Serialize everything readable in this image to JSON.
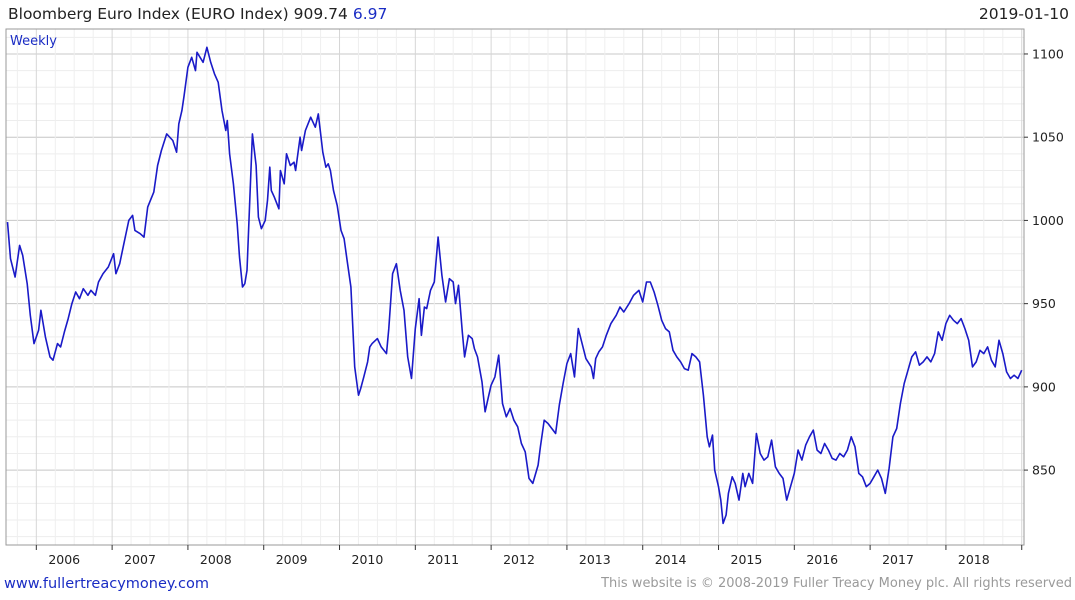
{
  "header": {
    "title": "Bloomberg Euro Index (EURO Index)",
    "last_value": "909.74",
    "change": "6.97",
    "date": "2019-01-10"
  },
  "footer": {
    "website": "www.fullertreacymoney.com",
    "copyright": "This website is © 2008-2019 Fuller Treacy Money plc. All rights reserved"
  },
  "colors": {
    "series": "#1a1ac8",
    "grid": "#dcdcdc",
    "text": "#222222",
    "accent": "#1a2cc4"
  },
  "chart_data": {
    "type": "line",
    "frequency_label": "Weekly",
    "xlabel": "",
    "ylabel": "",
    "xlim": [
      2005.6,
      2019.03
    ],
    "ylim": [
      805,
      1115
    ],
    "y_axis_side": "right",
    "grid": true,
    "x_ticks": [
      {
        "value": 2006,
        "label": "2006"
      },
      {
        "value": 2007,
        "label": "2007"
      },
      {
        "value": 2008,
        "label": "2008"
      },
      {
        "value": 2009,
        "label": "2009"
      },
      {
        "value": 2010,
        "label": "2010"
      },
      {
        "value": 2011,
        "label": "2011"
      },
      {
        "value": 2012,
        "label": "2012"
      },
      {
        "value": 2013,
        "label": "2013"
      },
      {
        "value": 2014,
        "label": "2014"
      },
      {
        "value": 2015,
        "label": "2015"
      },
      {
        "value": 2016,
        "label": "2016"
      },
      {
        "value": 2017,
        "label": "2017"
      },
      {
        "value": 2018,
        "label": "2018"
      }
    ],
    "y_ticks": [
      {
        "value": 850,
        "label": "850"
      },
      {
        "value": 900,
        "label": "900"
      },
      {
        "value": 950,
        "label": "950"
      },
      {
        "value": 1000,
        "label": "1000"
      },
      {
        "value": 1050,
        "label": "1050"
      },
      {
        "value": 1100,
        "label": "1100"
      }
    ],
    "series": [
      {
        "x": [
          2005.62,
          2005.66,
          2005.72,
          2005.78,
          2005.82,
          2005.88,
          2005.92,
          2005.97,
          2006.03,
          2006.06,
          2006.12,
          2006.18,
          2006.22,
          2006.28,
          2006.32,
          2006.37,
          2006.42,
          2006.47,
          2006.52,
          2006.57,
          2006.62,
          2006.68,
          2006.72,
          2006.78,
          2006.82,
          2006.88,
          2006.95,
          2007.02,
          2007.05,
          2007.1,
          2007.15,
          2007.22,
          2007.27,
          2007.3,
          2007.37,
          2007.42,
          2007.47,
          2007.55,
          2007.6,
          2007.65,
          2007.72,
          2007.8,
          2007.85,
          2007.88,
          2007.92,
          2007.95,
          2008.0,
          2008.05,
          2008.1,
          2008.12,
          2008.2,
          2008.25,
          2008.3,
          2008.35,
          2008.4,
          2008.45,
          2008.5,
          2008.52,
          2008.55,
          2008.6,
          2008.65,
          2008.68,
          2008.72,
          2008.75,
          2008.78,
          2008.85,
          2008.9,
          2008.93,
          2008.97,
          2009.02,
          2009.05,
          2009.08,
          2009.1,
          2009.14,
          2009.2,
          2009.22,
          2009.27,
          2009.3,
          2009.35,
          2009.4,
          2009.42,
          2009.48,
          2009.5,
          2009.55,
          2009.62,
          2009.68,
          2009.72,
          2009.78,
          2009.82,
          2009.85,
          2009.88,
          2009.92,
          2009.97,
          2010.02,
          2010.06,
          2010.1,
          2010.15,
          2010.2,
          2010.25,
          2010.28,
          2010.32,
          2010.37,
          2010.4,
          2010.43,
          2010.5,
          2010.55,
          2010.62,
          2010.65,
          2010.7,
          2010.75,
          2010.8,
          2010.85,
          2010.9,
          2010.95,
          2011.0,
          2011.05,
          2011.08,
          2011.12,
          2011.15,
          2011.2,
          2011.25,
          2011.3,
          2011.35,
          2011.4,
          2011.45,
          2011.5,
          2011.53,
          2011.57,
          2011.62,
          2011.65,
          2011.7,
          2011.75,
          2011.78,
          2011.82,
          2011.88,
          2011.92,
          2011.97,
          2012.0,
          2012.05,
          2012.1,
          2012.15,
          2012.2,
          2012.25,
          2012.3,
          2012.35,
          2012.4,
          2012.45,
          2012.5,
          2012.55,
          2012.62,
          2012.65,
          2012.7,
          2012.75,
          2012.8,
          2012.85,
          2012.9,
          2012.95,
          2013.0,
          2013.05,
          2013.1,
          2013.15,
          2013.2,
          2013.25,
          2013.32,
          2013.35,
          2013.38,
          2013.42,
          2013.47,
          2013.52,
          2013.58,
          2013.65,
          2013.7,
          2013.75,
          2013.82,
          2013.88,
          2013.95,
          2014.0,
          2014.05,
          2014.1,
          2014.15,
          2014.2,
          2014.25,
          2014.3,
          2014.35,
          2014.4,
          2014.45,
          2014.5,
          2014.55,
          2014.6,
          2014.65,
          2014.7,
          2014.75,
          2014.8,
          2014.85,
          2014.88,
          2014.92,
          2014.95,
          2015.0,
          2015.03,
          2015.06,
          2015.1,
          2015.13,
          2015.18,
          2015.22,
          2015.27,
          2015.32,
          2015.35,
          2015.4,
          2015.45,
          2015.5,
          2015.55,
          2015.6,
          2015.65,
          2015.7,
          2015.75,
          2015.8,
          2015.85,
          2015.9,
          2015.95,
          2016.0,
          2016.05,
          2016.1,
          2016.15,
          2016.2,
          2016.25,
          2016.3,
          2016.35,
          2016.4,
          2016.45,
          2016.5,
          2016.55,
          2016.6,
          2016.65,
          2016.7,
          2016.75,
          2016.8,
          2016.85,
          2016.9,
          2016.95,
          2017.0,
          2017.05,
          2017.1,
          2017.15,
          2017.2,
          2017.25,
          2017.3,
          2017.35,
          2017.4,
          2017.45,
          2017.5,
          2017.55,
          2017.6,
          2017.65,
          2017.7,
          2017.75,
          2017.8,
          2017.85,
          2017.9,
          2017.95,
          2018.0,
          2018.05,
          2018.1,
          2018.15,
          2018.2,
          2018.25,
          2018.3,
          2018.35,
          2018.4,
          2018.45,
          2018.5,
          2018.55,
          2018.6,
          2018.65,
          2018.7,
          2018.75,
          2018.8,
          2018.85,
          2018.9,
          2018.95,
          2019.0
        ],
        "y": [
          999,
          977,
          966,
          985,
          979,
          962,
          943,
          926,
          934,
          946,
          930,
          918,
          916,
          926,
          924,
          933,
          941,
          950,
          957,
          953,
          959,
          955,
          958,
          955,
          963,
          968,
          972,
          980,
          968,
          974,
          985,
          1000,
          1003,
          994,
          992,
          990,
          1008,
          1017,
          1033,
          1042,
          1052,
          1048,
          1041,
          1058,
          1066,
          1075,
          1092,
          1098,
          1090,
          1101,
          1095,
          1104,
          1095,
          1088,
          1083,
          1066,
          1054,
          1060,
          1040,
          1022,
          998,
          978,
          960,
          962,
          970,
          1052,
          1033,
          1002,
          995,
          1000,
          1012,
          1032,
          1018,
          1014,
          1007,
          1030,
          1022,
          1040,
          1033,
          1035,
          1030,
          1050,
          1042,
          1054,
          1062,
          1056,
          1064,
          1041,
          1032,
          1034,
          1030,
          1018,
          1009,
          994,
          989,
          976,
          960,
          912,
          895,
          899,
          906,
          915,
          924,
          926,
          929,
          924,
          920,
          935,
          968,
          974,
          958,
          946,
          918,
          905,
          935,
          953,
          931,
          948,
          947,
          958,
          963,
          990,
          967,
          951,
          965,
          963,
          950,
          961,
          933,
          918,
          931,
          929,
          923,
          918,
          903,
          885,
          895,
          901,
          906,
          919,
          890,
          882,
          887,
          880,
          876,
          866,
          861,
          845,
          842,
          853,
          864,
          880,
          878,
          875,
          872,
          889,
          902,
          914,
          920,
          906,
          935,
          926,
          917,
          912,
          905,
          917,
          921,
          924,
          931,
          938,
          943,
          948,
          945,
          950,
          955,
          958,
          951,
          963,
          963,
          957,
          949,
          940,
          935,
          933,
          922,
          918,
          915,
          911,
          910,
          920,
          918,
          915,
          895,
          870,
          864,
          871,
          850,
          840,
          832,
          818,
          823,
          836,
          846,
          842,
          832,
          848,
          840,
          848,
          842,
          872,
          860,
          856,
          858,
          868,
          852,
          848,
          845,
          832,
          840,
          848,
          862,
          856,
          865,
          870,
          874,
          862,
          860,
          866,
          862,
          857,
          856,
          860,
          858,
          862,
          870,
          864,
          848,
          846,
          840,
          842,
          846,
          850,
          845,
          836,
          851,
          870,
          875,
          890,
          902,
          910,
          918,
          921,
          913,
          915,
          918,
          915,
          920,
          933,
          928,
          938,
          943,
          940,
          938,
          941,
          935,
          928,
          912,
          915,
          922,
          920,
          924,
          916,
          912,
          928,
          920,
          909,
          905,
          907,
          905,
          910
        ]
      }
    ]
  }
}
